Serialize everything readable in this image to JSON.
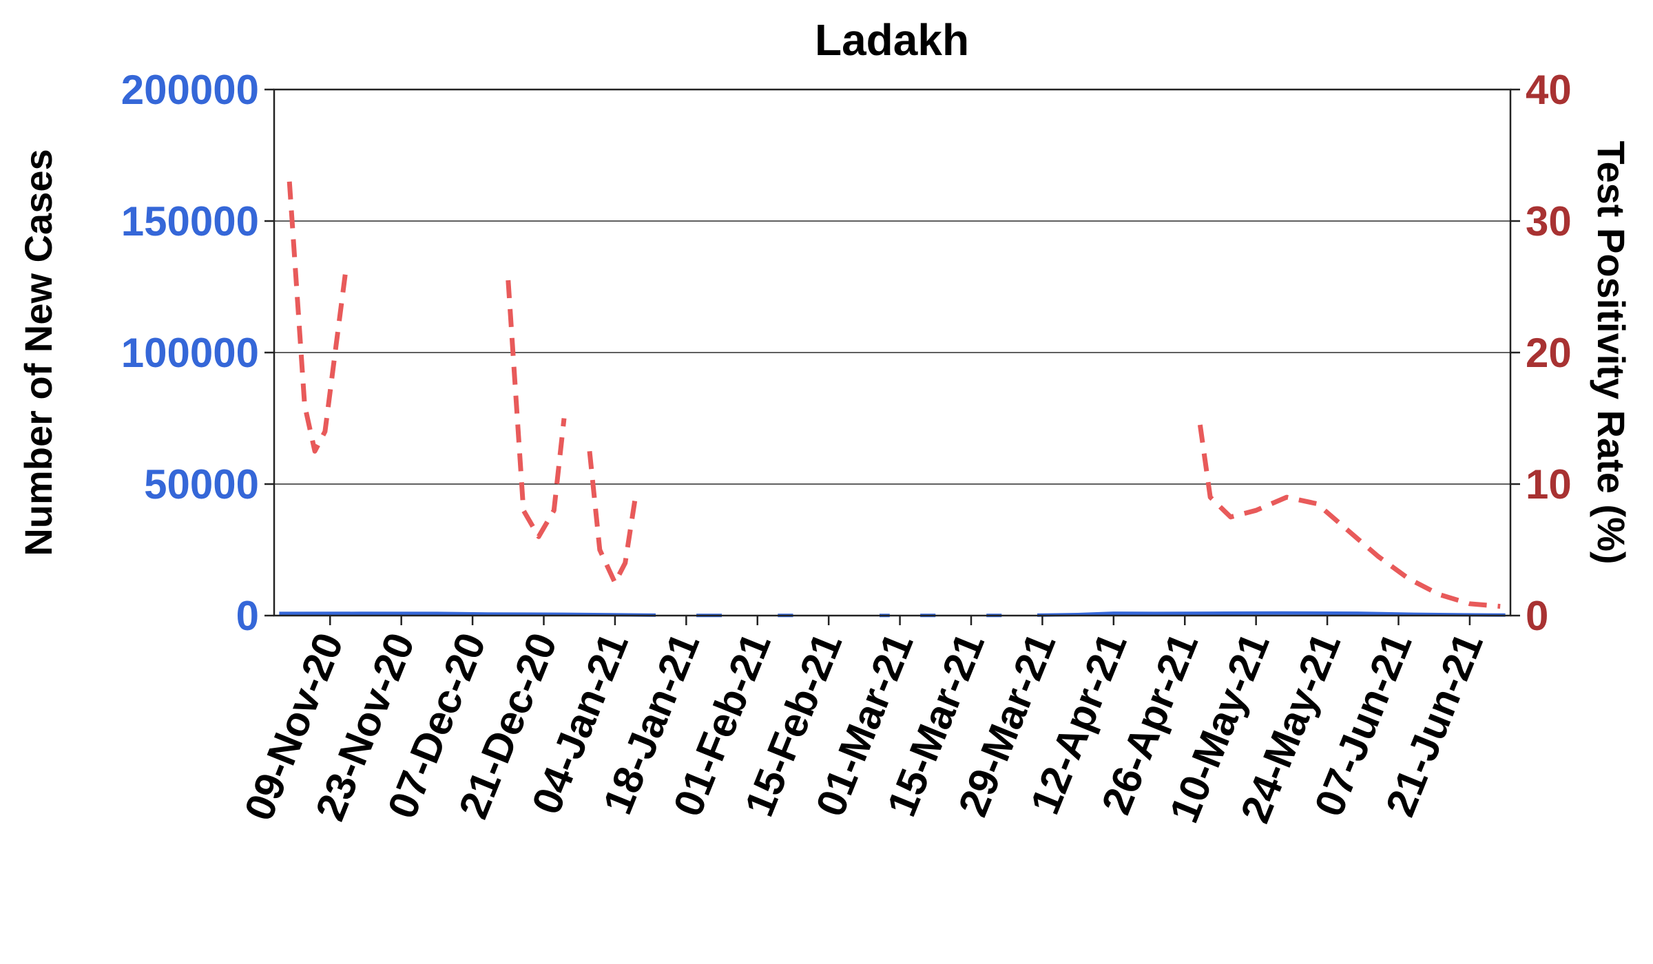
{
  "chart_data": {
    "type": "line",
    "title": "Ladakh",
    "y_left": {
      "label": "Number of New Cases",
      "range": [
        0,
        200000
      ],
      "ticks": [
        0,
        50000,
        100000,
        150000,
        200000
      ],
      "tick_labels": [
        "0",
        "50000",
        "100000",
        "150000",
        "200000"
      ]
    },
    "y_right": {
      "label": "Test Positivity Rate (%)",
      "range": [
        0,
        40
      ],
      "ticks": [
        0,
        10,
        20,
        30,
        40
      ],
      "tick_labels": [
        "0",
        "10",
        "20",
        "30",
        "40"
      ]
    },
    "x_axis": {
      "type": "date",
      "range": [
        "2020-10-29",
        "2021-06-29"
      ],
      "ticks": [
        "2020-11-09",
        "2020-11-23",
        "2020-12-07",
        "2020-12-21",
        "2021-01-04",
        "2021-01-18",
        "2021-02-01",
        "2021-02-15",
        "2021-03-01",
        "2021-03-15",
        "2021-03-29",
        "2021-04-12",
        "2021-04-26",
        "2021-05-10",
        "2021-05-24",
        "2021-06-07",
        "2021-06-21"
      ],
      "tick_labels": [
        "09-Nov-20",
        "23-Nov-20",
        "07-Dec-20",
        "21-Dec-20",
        "04-Jan-21",
        "18-Jan-21",
        "01-Feb-21",
        "15-Feb-21",
        "01-Mar-21",
        "15-Mar-21",
        "29-Mar-21",
        "12-Apr-21",
        "26-Apr-21",
        "10-May-21",
        "24-May-21",
        "07-Jun-21",
        "21-Jun-21"
      ]
    },
    "grid": "horizontal",
    "series": [
      {
        "axis": "left",
        "color": "#3567d8",
        "style": "solid",
        "segments": [
          [
            [
              "2020-10-30",
              800
            ],
            [
              "2020-11-15",
              850
            ],
            [
              "2020-11-30",
              800
            ],
            [
              "2020-12-10",
              600
            ],
            [
              "2020-12-25",
              500
            ],
            [
              "2021-01-05",
              300
            ],
            [
              "2021-01-12",
              150
            ]
          ],
          [
            [
              "2021-01-20",
              80
            ],
            [
              "2021-01-25",
              60
            ]
          ],
          [
            [
              "2021-02-05",
              80
            ],
            [
              "2021-02-08",
              70
            ]
          ],
          [
            [
              "2021-02-25",
              60
            ],
            [
              "2021-02-27",
              60
            ]
          ],
          [
            [
              "2021-03-05",
              60
            ],
            [
              "2021-03-08",
              60
            ]
          ],
          [
            [
              "2021-03-18",
              70
            ],
            [
              "2021-03-21",
              70
            ]
          ],
          [
            [
              "2021-03-28",
              150
            ],
            [
              "2021-04-05",
              400
            ],
            [
              "2021-04-12",
              900
            ],
            [
              "2021-04-20",
              800
            ],
            [
              "2021-05-01",
              900
            ],
            [
              "2021-05-15",
              1000
            ],
            [
              "2021-05-30",
              900
            ],
            [
              "2021-06-10",
              500
            ],
            [
              "2021-06-20",
              300
            ],
            [
              "2021-06-28",
              200
            ]
          ]
        ]
      },
      {
        "axis": "right",
        "color": "#e85a5a",
        "style": "dashed",
        "segments": [
          [
            [
              "2020-11-01",
              33
            ],
            [
              "2020-11-04",
              16
            ],
            [
              "2020-11-06",
              12.5
            ],
            [
              "2020-11-08",
              14
            ],
            [
              "2020-11-10",
              20
            ],
            [
              "2020-11-12",
              26
            ]
          ],
          [
            [
              "2020-12-14",
              25.5
            ],
            [
              "2020-12-17",
              8
            ],
            [
              "2020-12-20",
              6
            ],
            [
              "2020-12-23",
              8
            ],
            [
              "2020-12-25",
              15
            ]
          ],
          [
            [
              "2020-12-30",
              12.5
            ],
            [
              "2021-01-01",
              5
            ],
            [
              "2021-01-04",
              2.5
            ],
            [
              "2021-01-06",
              4
            ],
            [
              "2021-01-08",
              9
            ]
          ],
          [
            [
              "2021-04-29",
              14.5
            ],
            [
              "2021-05-01",
              9
            ],
            [
              "2021-05-05",
              7.5
            ],
            [
              "2021-05-10",
              8
            ],
            [
              "2021-05-16",
              9
            ],
            [
              "2021-05-22",
              8.5
            ],
            [
              "2021-05-28",
              6.5
            ],
            [
              "2021-06-03",
              4.5
            ],
            [
              "2021-06-09",
              2.8
            ],
            [
              "2021-06-15",
              1.6
            ],
            [
              "2021-06-21",
              0.9
            ],
            [
              "2021-06-27",
              0.7
            ]
          ]
        ]
      }
    ],
    "colors": {
      "left_axis": "#3567d8",
      "right_axis": "#a83232"
    }
  }
}
